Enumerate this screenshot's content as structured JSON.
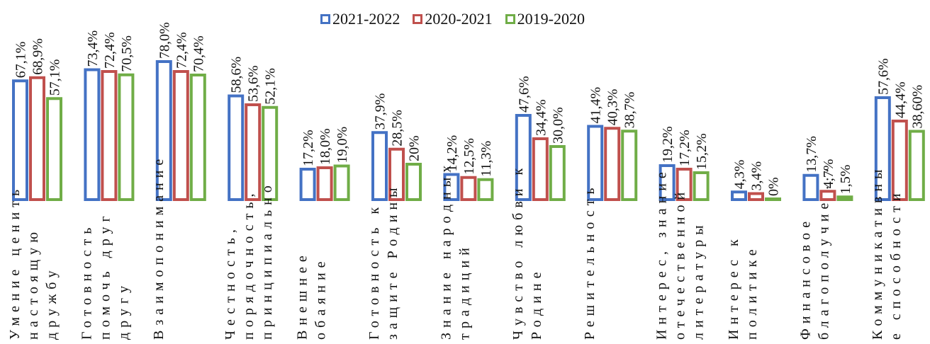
{
  "chart_data": {
    "type": "bar",
    "title": "",
    "xlabel": "",
    "ylabel": "",
    "ylim": [
      0,
      100
    ],
    "grid": false,
    "legend_position": "top-center",
    "colors": [
      "#4472C4",
      "#C0504D",
      "#70AD47"
    ],
    "categories": [
      "Умение настоящую дружбу",
      "Готовность помочь друг другу",
      "Взаимопонимание",
      "Честность, порядочность, принципиально",
      "Внешнее обаяние",
      "Готовность к защите Родины",
      "Знание народных традиций",
      "Чувство любви к Родине",
      "Решительность",
      "Интерес, знание отечественной литературы",
      "Интерес к политике",
      "Финансовое благополучие ...",
      "Коммуникативные способности"
    ],
    "category_lines": [
      [
        "Умение ценить",
        "настоящую",
        "дружбу"
      ],
      [
        "Готовность",
        "помочь друг",
        "другу"
      ],
      [
        "Взаимопонимание"
      ],
      [
        "Честность,",
        "порядочность,",
        "принципиально"
      ],
      [
        "Внешнее",
        "обаяние"
      ],
      [
        "Готовность к",
        "защите Родины"
      ],
      [
        "Знание народных",
        "традиций"
      ],
      [
        "Чувство любви к",
        "Родине"
      ],
      [
        "Решительность"
      ],
      [
        "Интерес, знание",
        "отечественной",
        "литературы"
      ],
      [
        "Интерес к",
        "политике"
      ],
      [
        "Финансовое",
        "благополучие ..."
      ],
      [
        "Коммуникативны",
        "е способности"
      ]
    ],
    "series": [
      {
        "name": "2021-2022",
        "values": [
          67.1,
          73.4,
          78.0,
          58.6,
          17.2,
          37.9,
          14.2,
          47.6,
          41.4,
          19.2,
          4.3,
          13.7,
          57.6
        ],
        "labels": [
          "67,1%",
          "73,4%",
          "78,0%",
          "58,6%",
          "17,2%",
          "37,9%",
          "14,2%",
          "47,6%",
          "41,4%",
          "19,2%",
          "4,3%",
          "13,7%",
          "57,6%"
        ]
      },
      {
        "name": "2020-2021",
        "values": [
          68.9,
          72.4,
          72.4,
          53.6,
          18.0,
          28.5,
          12.5,
          34.4,
          40.3,
          17.2,
          3.4,
          4.7,
          44.4
        ],
        "labels": [
          "68,9%",
          "72,4%",
          "72,4%",
          "53,6%",
          "18,0%",
          "28,5%",
          "12,5%",
          "34,4%",
          "40,3%",
          "17,2%",
          "3,4%",
          "4,7%",
          "44,4%"
        ]
      },
      {
        "name": "2019-2020",
        "values": [
          57.1,
          70.5,
          70.4,
          52.1,
          19.0,
          20.0,
          11.3,
          30.0,
          38.7,
          15.2,
          0,
          1.5,
          38.6
        ],
        "labels": [
          "57,1%",
          "70,5%",
          "70,4%",
          "52,1%",
          "19,0%",
          "20%",
          "11,3%",
          "30,0%",
          "38,7%",
          "15,2%",
          "0%",
          "1,5%",
          "38,60%"
        ]
      }
    ]
  }
}
